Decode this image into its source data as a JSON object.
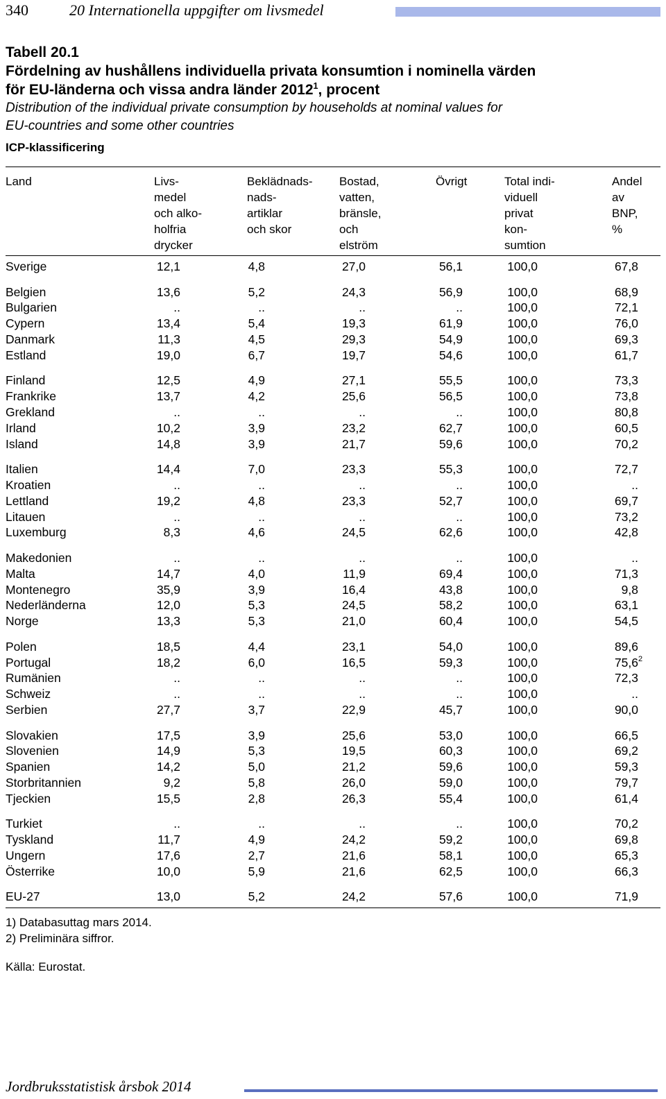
{
  "header": {
    "page_number": "340",
    "chapter": "20   Internationella uppgifter om livsmedel"
  },
  "title": {
    "table_label": "Tabell 20.1",
    "swedish_line1": "Fördelning av hushållens individuella privata konsumtion i nominella värden",
    "swedish_line2_pre": "för EU-länderna och vissa andra länder 2012",
    "swedish_line2_sup": "1",
    "swedish_line2_post": ", procent",
    "english_line1": "Distribution of the individual private consumption by households at nominal values for",
    "english_line2": "EU-countries and some other countries",
    "classification": "ICP-klassificering"
  },
  "columns": [
    {
      "key": "land",
      "lines": [
        "Land"
      ]
    },
    {
      "key": "livsmedel",
      "lines": [
        "Livs-",
        "medel",
        "och alko-",
        "holfria",
        "drycker"
      ]
    },
    {
      "key": "beklad",
      "lines": [
        "Beklädnads-",
        "nads-",
        "artiklar",
        "och skor"
      ]
    },
    {
      "key": "bostad",
      "lines": [
        "Bostad,",
        "vatten,",
        "bränsle,",
        "och",
        "elström"
      ]
    },
    {
      "key": "ovrigt",
      "lines": [
        "Övrigt"
      ]
    },
    {
      "key": "total",
      "lines": [
        "Total indi-",
        "viduell",
        "privat",
        "kon-",
        "sumtion"
      ]
    },
    {
      "key": "andel",
      "lines": [
        "Andel",
        "av",
        "BNP,",
        "%"
      ]
    }
  ],
  "rows": [
    {
      "land": "Sverige",
      "v": [
        "12,1",
        "4,8",
        "27,0",
        "56,1",
        "100,0",
        "67,8"
      ]
    },
    {
      "land": "Belgien",
      "v": [
        "13,6",
        "5,2",
        "24,3",
        "56,9",
        "100,0",
        "68,9"
      ]
    },
    {
      "land": "Bulgarien",
      "v": [
        "..",
        "..",
        "..",
        "..",
        "100,0",
        "72,1"
      ]
    },
    {
      "land": "Cypern",
      "v": [
        "13,4",
        "5,4",
        "19,3",
        "61,9",
        "100,0",
        "76,0"
      ]
    },
    {
      "land": "Danmark",
      "v": [
        "11,3",
        "4,5",
        "29,3",
        "54,9",
        "100,0",
        "69,3"
      ]
    },
    {
      "land": "Estland",
      "v": [
        "19,0",
        "6,7",
        "19,7",
        "54,6",
        "100,0",
        "61,7"
      ]
    },
    {
      "land": "Finland",
      "v": [
        "12,5",
        "4,9",
        "27,1",
        "55,5",
        "100,0",
        "73,3"
      ]
    },
    {
      "land": "Frankrike",
      "v": [
        "13,7",
        "4,2",
        "25,6",
        "56,5",
        "100,0",
        "73,8"
      ]
    },
    {
      "land": "Grekland",
      "v": [
        "..",
        "..",
        "..",
        "..",
        "100,0",
        "80,8"
      ]
    },
    {
      "land": "Irland",
      "v": [
        "10,2",
        "3,9",
        "23,2",
        "62,7",
        "100,0",
        "60,5"
      ]
    },
    {
      "land": "Island",
      "v": [
        "14,8",
        "3,9",
        "21,7",
        "59,6",
        "100,0",
        "70,2"
      ]
    },
    {
      "land": "Italien",
      "v": [
        "14,4",
        "7,0",
        "23,3",
        "55,3",
        "100,0",
        "72,7"
      ]
    },
    {
      "land": "Kroatien",
      "v": [
        "..",
        "..",
        "..",
        "..",
        "100,0",
        ".."
      ]
    },
    {
      "land": "Lettland",
      "v": [
        "19,2",
        "4,8",
        "23,3",
        "52,7",
        "100,0",
        "69,7"
      ]
    },
    {
      "land": "Litauen",
      "v": [
        "..",
        "..",
        "..",
        "..",
        "100,0",
        "73,2"
      ]
    },
    {
      "land": "Luxemburg",
      "v": [
        "8,3",
        "4,6",
        "24,5",
        "62,6",
        "100,0",
        "42,8"
      ]
    },
    {
      "land": "Makedonien",
      "v": [
        "..",
        "..",
        "..",
        "..",
        "100,0",
        ".."
      ]
    },
    {
      "land": "Malta",
      "v": [
        "14,7",
        "4,0",
        "11,9",
        "69,4",
        "100,0",
        "71,3"
      ]
    },
    {
      "land": "Montenegro",
      "v": [
        "35,9",
        "3,9",
        "16,4",
        "43,8",
        "100,0",
        "9,8"
      ]
    },
    {
      "land": "Nederländerna",
      "v": [
        "12,0",
        "5,3",
        "24,5",
        "58,2",
        "100,0",
        "63,1"
      ]
    },
    {
      "land": "Norge",
      "v": [
        "13,3",
        "5,3",
        "21,0",
        "60,4",
        "100,0",
        "54,5"
      ]
    },
    {
      "land": "Polen",
      "v": [
        "18,5",
        "4,4",
        "23,1",
        "54,0",
        "100,0",
        "89,6"
      ]
    },
    {
      "land": "Portugal",
      "v": [
        "18,2",
        "6,0",
        "16,5",
        "59,3",
        "100,0",
        "75,6"
      ],
      "andel_sup": "2"
    },
    {
      "land": "Rumänien",
      "v": [
        "..",
        "..",
        "..",
        "..",
        "100,0",
        "72,3"
      ]
    },
    {
      "land": "Schweiz",
      "v": [
        "..",
        "..",
        "..",
        "..",
        "100,0",
        ".."
      ]
    },
    {
      "land": "Serbien",
      "v": [
        "27,7",
        "3,7",
        "22,9",
        "45,7",
        "100,0",
        "90,0"
      ]
    },
    {
      "land": "Slovakien",
      "v": [
        "17,5",
        "3,9",
        "25,6",
        "53,0",
        "100,0",
        "66,5"
      ]
    },
    {
      "land": "Slovenien",
      "v": [
        "14,9",
        "5,3",
        "19,5",
        "60,3",
        "100,0",
        "69,2"
      ]
    },
    {
      "land": "Spanien",
      "v": [
        "14,2",
        "5,0",
        "21,2",
        "59,6",
        "100,0",
        "59,3"
      ]
    },
    {
      "land": "Storbritannien",
      "v": [
        "9,2",
        "5,8",
        "26,0",
        "59,0",
        "100,0",
        "79,7"
      ]
    },
    {
      "land": "Tjeckien",
      "v": [
        "15,5",
        "2,8",
        "26,3",
        "55,4",
        "100,0",
        "61,4"
      ]
    },
    {
      "land": "Turkiet",
      "v": [
        "..",
        "..",
        "..",
        "..",
        "100,0",
        "70,2"
      ]
    },
    {
      "land": "Tyskland",
      "v": [
        "11,7",
        "4,9",
        "24,2",
        "59,2",
        "100,0",
        "69,8"
      ]
    },
    {
      "land": "Ungern",
      "v": [
        "17,6",
        "2,7",
        "21,6",
        "58,1",
        "100,0",
        "65,3"
      ]
    },
    {
      "land": "Österrike",
      "v": [
        "10,0",
        "5,9",
        "21,6",
        "62,5",
        "100,0",
        "66,3"
      ]
    },
    {
      "land": "EU-27",
      "v": [
        "13,0",
        "5,2",
        "24,2",
        "57,6",
        "100,0",
        "71,9"
      ]
    }
  ],
  "footnotes": [
    "1)  Databasuttag mars 2014.",
    "2)  Preliminära siffror."
  ],
  "source": "Källa: Eurostat.",
  "footer": "Jordbruksstatistisk årsbok 2014",
  "colors": {
    "header_bar": "#a9b8ea",
    "footer_bar": "#5a6fbf"
  }
}
